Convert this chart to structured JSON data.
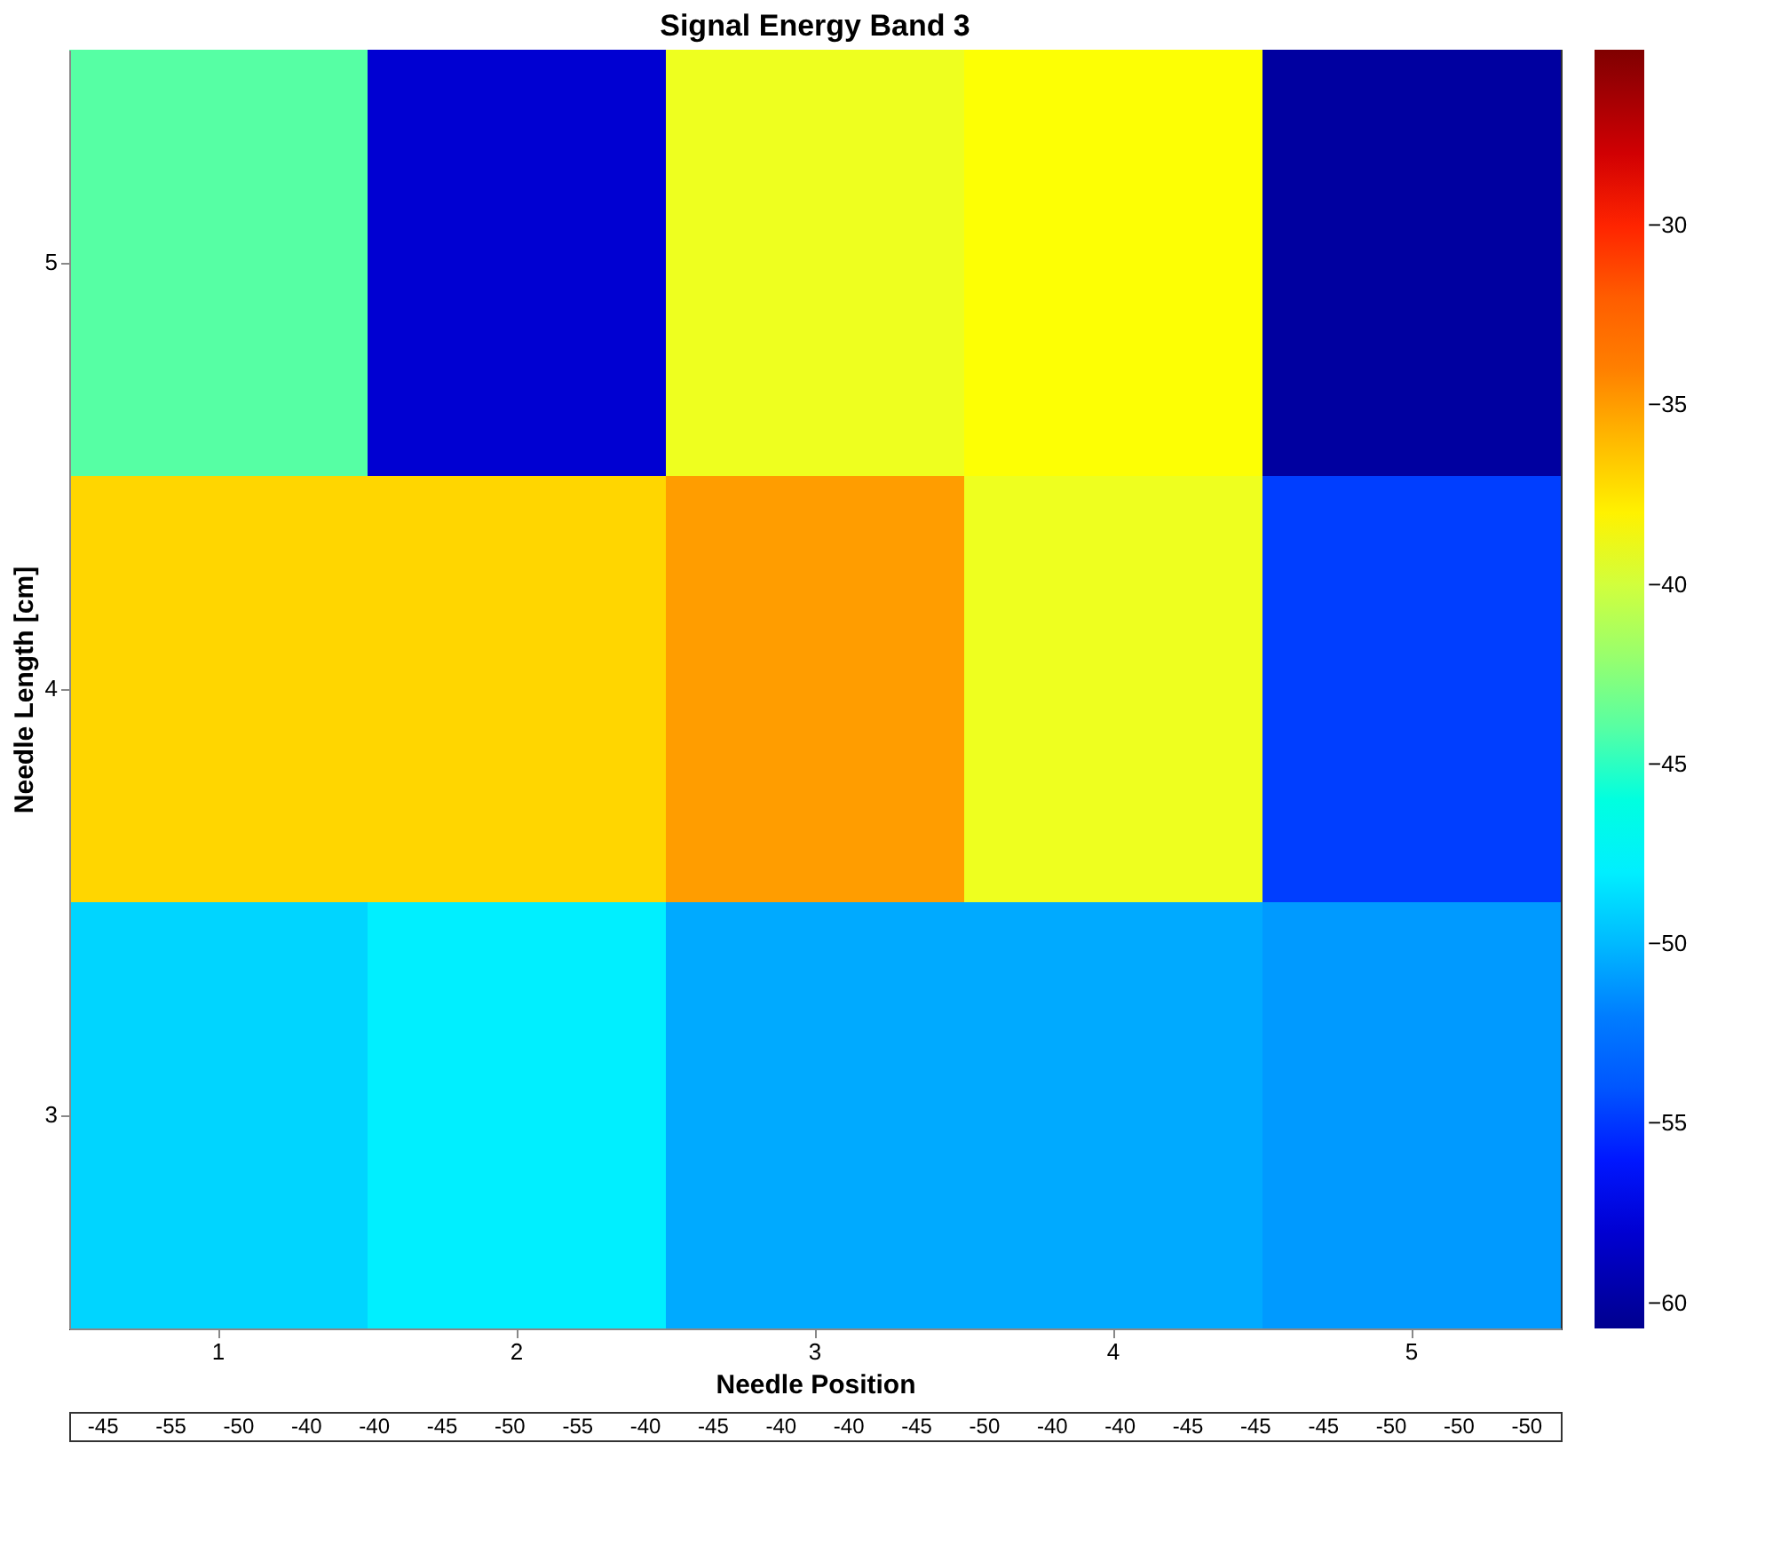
{
  "chart_data": {
    "type": "heatmap",
    "title": "Signal Energy Band 3",
    "xlabel": "Needle Position",
    "ylabel": "Needle Length [cm]",
    "categories": [
      "1",
      "2",
      "3",
      "4",
      "5"
    ],
    "y_categories": [
      "5",
      "4",
      "3"
    ],
    "cells": [
      [
        -44,
        -58,
        -39,
        -38.5,
        -60
      ],
      [
        -37,
        -37,
        -35,
        -39,
        -55
      ],
      [
        -49,
        -48,
        -50.5,
        -50.5,
        -51
      ]
    ],
    "clim": [
      -60.7,
      -25.1
    ],
    "cticks": [
      -60,
      -55,
      -50,
      -45,
      -40,
      -35,
      -30
    ],
    "annotations": [
      "-45",
      "-55",
      "-50",
      "-40",
      "-40",
      "-45",
      "-50",
      "-55",
      "-40",
      "-45",
      "-40",
      "-40",
      "-45",
      "-50",
      "-40",
      "-40",
      "-45",
      "-45",
      "-45",
      "-50",
      "-50",
      "-50"
    ]
  }
}
